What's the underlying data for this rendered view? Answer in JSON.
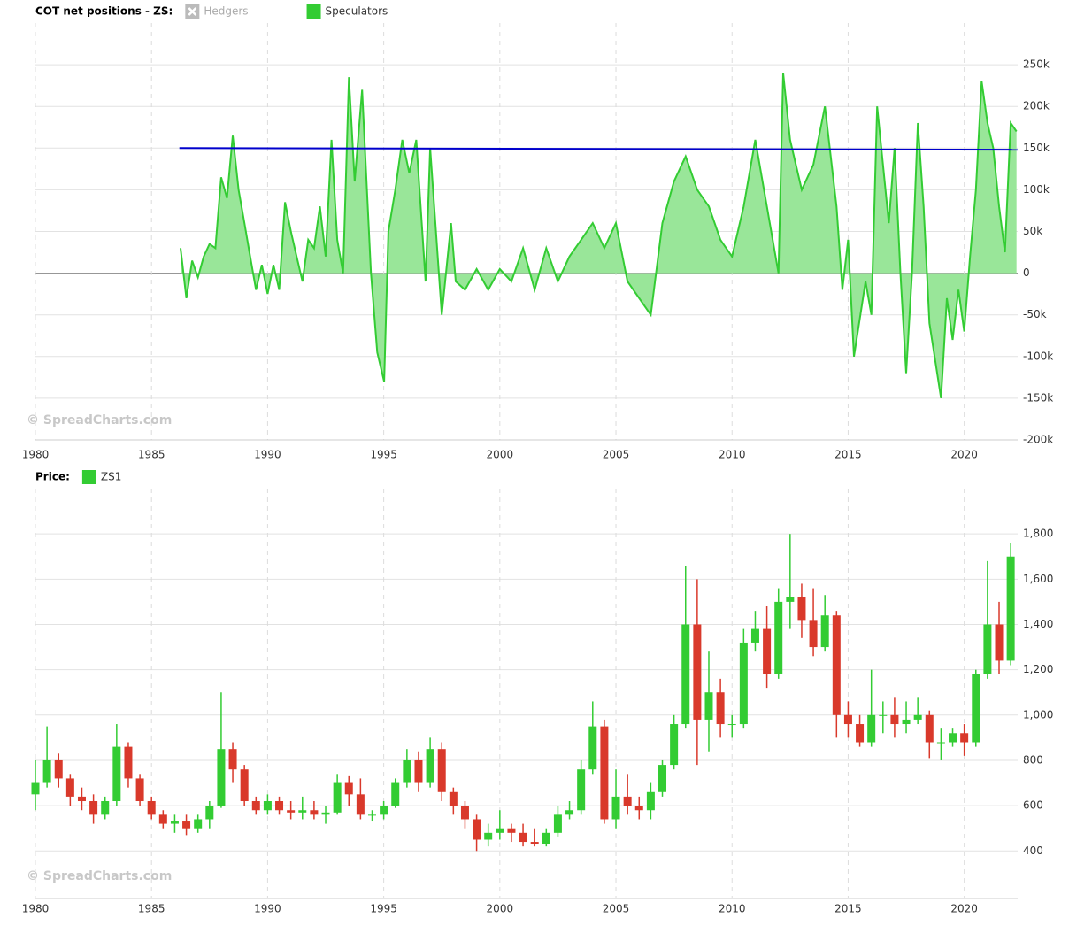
{
  "chart_data": [
    {
      "type": "area",
      "title": "COT net positions - ZS:",
      "watermark": "© SpreadCharts.com",
      "legend": [
        {
          "name": "Hedgers",
          "color": "#bbbbbb",
          "visible": false
        },
        {
          "name": "Speculators",
          "color": "#33cc33",
          "visible": true
        }
      ],
      "x": [
        1986.25,
        1986.5,
        1986.75,
        1987.0,
        1987.25,
        1987.5,
        1987.75,
        1988.0,
        1988.25,
        1988.5,
        1988.75,
        1989.0,
        1989.25,
        1989.5,
        1989.75,
        1990.0,
        1990.25,
        1990.5,
        1990.75,
        1991.0,
        1991.25,
        1991.5,
        1991.75,
        1992.0,
        1992.25,
        1992.5,
        1992.75,
        1993.0,
        1993.25,
        1993.5,
        1993.75,
        1994.07,
        1994.45,
        1994.72,
        1995.02,
        1995.2,
        1995.5,
        1995.8,
        1996.1,
        1996.4,
        1996.8,
        1997.0,
        1997.5,
        1997.9,
        1998.1,
        1998.5,
        1999.0,
        1999.5,
        2000.0,
        2000.5,
        2001.0,
        2001.5,
        2002.0,
        2002.5,
        2003.0,
        2003.5,
        2004.0,
        2004.5,
        2005.0,
        2005.5,
        2006.0,
        2006.5,
        2007.0,
        2007.5,
        2008.0,
        2008.5,
        2009.0,
        2009.5,
        2010.0,
        2010.5,
        2011.0,
        2011.5,
        2012.0,
        2012.2,
        2012.5,
        2013.0,
        2013.5,
        2014.0,
        2014.5,
        2014.75,
        2015.0,
        2015.25,
        2015.75,
        2016.0,
        2016.25,
        2016.75,
        2017.0,
        2017.25,
        2017.5,
        2017.75,
        2018.0,
        2018.25,
        2018.5,
        2019.0,
        2019.25,
        2019.5,
        2019.75,
        2020.0,
        2020.25,
        2020.5,
        2020.75,
        2021.0,
        2021.25,
        2021.5,
        2021.75,
        2022.0,
        2022.25
      ],
      "series": [
        {
          "name": "Speculators",
          "color": "#33cc33",
          "fill": "#99e699",
          "values": [
            30000,
            -30000,
            15000,
            -5000,
            20000,
            35000,
            30000,
            115000,
            90000,
            165000,
            100000,
            60000,
            20000,
            -20000,
            10000,
            -25000,
            10000,
            -20000,
            85000,
            50000,
            20000,
            -10000,
            40000,
            30000,
            80000,
            20000,
            160000,
            40000,
            0,
            235000,
            110000,
            220000,
            0,
            -95000,
            -130000,
            50000,
            100000,
            160000,
            120000,
            160000,
            -10000,
            150000,
            -50000,
            60000,
            -10000,
            -20000,
            5000,
            -20000,
            5000,
            -10000,
            30000,
            -20000,
            30000,
            -10000,
            20000,
            40000,
            60000,
            30000,
            60000,
            -10000,
            -30000,
            -50000,
            60000,
            110000,
            140000,
            100000,
            80000,
            40000,
            20000,
            80000,
            160000,
            80000,
            0,
            240000,
            160000,
            100000,
            130000,
            200000,
            80000,
            -20000,
            40000,
            -100000,
            -10000,
            -50000,
            200000,
            60000,
            150000,
            0,
            -120000,
            0,
            180000,
            80000,
            -60000,
            -150000,
            -30000,
            -80000,
            -20000,
            -70000,
            20000,
            100000,
            230000,
            180000,
            150000,
            80000,
            25000,
            180000,
            170000
          ]
        }
      ],
      "reference_line": {
        "x": [
          1986.2,
          2022.3
        ],
        "values": [
          150000,
          148000
        ],
        "color": "#0000cc"
      },
      "xlim": [
        1980,
        2022.3
      ],
      "xticks": [
        1980,
        1985,
        1990,
        1995,
        2000,
        2005,
        2010,
        2015,
        2020
      ],
      "ylim": [
        -200000,
        300000
      ],
      "yticks": [
        {
          "value": -200000,
          "label": "-200k"
        },
        {
          "value": -150000,
          "label": "-150k"
        },
        {
          "value": -100000,
          "label": "-100k"
        },
        {
          "value": -50000,
          "label": "-50k"
        },
        0,
        {
          "value": 50000,
          "label": "50k"
        },
        {
          "value": 100000,
          "label": "100k"
        },
        {
          "value": 150000,
          "label": "150k"
        },
        {
          "value": 200000,
          "label": "200k"
        },
        {
          "value": 250000,
          "label": "250k"
        }
      ],
      "grid": true
    },
    {
      "type": "candlestick",
      "title": "Price:",
      "watermark": "© SpreadCharts.com",
      "legend": [
        {
          "name": "ZS1",
          "color": "#33cc33",
          "visible": true
        }
      ],
      "up_color": "#33cc33",
      "down_color": "#d9392b",
      "x": [
        1980.0,
        1980.5,
        1981.0,
        1981.5,
        1982.0,
        1982.5,
        1983.0,
        1983.5,
        1984.0,
        1984.5,
        1985.0,
        1985.5,
        1986.0,
        1986.5,
        1987.0,
        1987.5,
        1988.0,
        1988.5,
        1989.0,
        1989.5,
        1990.0,
        1990.5,
        1991.0,
        1991.5,
        1992.0,
        1992.5,
        1993.0,
        1993.5,
        1994.0,
        1994.5,
        1995.0,
        1995.5,
        1996.0,
        1996.5,
        1997.0,
        1997.5,
        1998.0,
        1998.5,
        1999.0,
        1999.5,
        2000.0,
        2000.5,
        2001.0,
        2001.5,
        2002.0,
        2002.5,
        2003.0,
        2003.5,
        2004.0,
        2004.5,
        2005.0,
        2005.5,
        2006.0,
        2006.5,
        2007.0,
        2007.5,
        2008.0,
        2008.5,
        2009.0,
        2009.5,
        2010.0,
        2010.5,
        2011.0,
        2011.5,
        2012.0,
        2012.5,
        2013.0,
        2013.5,
        2014.0,
        2014.5,
        2015.0,
        2015.5,
        2016.0,
        2016.5,
        2017.0,
        2017.5,
        2018.0,
        2018.5,
        2019.0,
        2019.5,
        2020.0,
        2020.5,
        2021.0,
        2021.5,
        2022.0
      ],
      "open": [
        650,
        700,
        800,
        720,
        640,
        620,
        560,
        620,
        860,
        720,
        620,
        560,
        520,
        530,
        500,
        540,
        600,
        850,
        760,
        620,
        580,
        620,
        580,
        570,
        580,
        560,
        570,
        700,
        650,
        560,
        560,
        600,
        700,
        800,
        700,
        850,
        660,
        600,
        540,
        450,
        480,
        500,
        480,
        440,
        430,
        480,
        560,
        580,
        760,
        950,
        540,
        640,
        600,
        580,
        660,
        780,
        960,
        1400,
        980,
        1100,
        960,
        960,
        1320,
        1380,
        1180,
        1500,
        1520,
        1420,
        1300,
        1440,
        1000,
        960,
        880,
        1000,
        1000,
        960,
        980,
        1000,
        880,
        880,
        920,
        880,
        1180,
        1400,
        1240
      ],
      "high": [
        800,
        950,
        830,
        740,
        680,
        650,
        640,
        960,
        880,
        740,
        640,
        580,
        560,
        560,
        560,
        620,
        1100,
        880,
        780,
        640,
        650,
        640,
        620,
        640,
        620,
        600,
        740,
        730,
        720,
        580,
        620,
        720,
        850,
        840,
        900,
        880,
        680,
        620,
        560,
        520,
        580,
        520,
        520,
        500,
        500,
        600,
        620,
        800,
        1060,
        980,
        760,
        740,
        640,
        700,
        800,
        1000,
        1660,
        1600,
        1280,
        1160,
        1000,
        1380,
        1460,
        1480,
        1560,
        1800,
        1580,
        1560,
        1530,
        1460,
        1060,
        1000,
        1200,
        1060,
        1080,
        1060,
        1080,
        1020,
        940,
        940,
        960,
        1200,
        1680,
        1500,
        1760
      ],
      "low": [
        580,
        680,
        680,
        600,
        580,
        520,
        540,
        600,
        680,
        600,
        540,
        500,
        480,
        470,
        480,
        500,
        590,
        700,
        600,
        560,
        560,
        560,
        540,
        540,
        540,
        520,
        560,
        600,
        540,
        530,
        540,
        590,
        680,
        660,
        680,
        620,
        560,
        500,
        400,
        420,
        450,
        440,
        420,
        420,
        420,
        460,
        540,
        560,
        740,
        520,
        500,
        560,
        540,
        540,
        640,
        760,
        940,
        780,
        840,
        900,
        900,
        940,
        1280,
        1120,
        1160,
        1380,
        1340,
        1260,
        1280,
        900,
        900,
        860,
        860,
        920,
        900,
        920,
        960,
        810,
        800,
        860,
        820,
        860,
        1160,
        1180,
        1220
      ],
      "close": [
        700,
        800,
        720,
        640,
        620,
        560,
        620,
        860,
        720,
        620,
        560,
        520,
        530,
        500,
        540,
        600,
        850,
        760,
        620,
        580,
        620,
        580,
        570,
        580,
        560,
        570,
        700,
        650,
        560,
        560,
        600,
        700,
        800,
        700,
        850,
        660,
        600,
        540,
        450,
        480,
        500,
        480,
        440,
        430,
        480,
        560,
        580,
        760,
        950,
        540,
        640,
        600,
        580,
        660,
        780,
        960,
        1400,
        980,
        1100,
        960,
        960,
        1320,
        1380,
        1180,
        1500,
        1520,
        1420,
        1300,
        1440,
        1000,
        960,
        880,
        1000,
        1000,
        960,
        980,
        1000,
        880,
        880,
        920,
        880,
        1180,
        1400,
        1240,
        1700
      ],
      "xlim": [
        1980,
        2022.3
      ],
      "xticks": [
        1980,
        1985,
        1990,
        1995,
        2000,
        2005,
        2010,
        2015,
        2020
      ],
      "ylim": [
        190,
        2000
      ],
      "yticks": [
        400,
        600,
        800,
        {
          "value": 1000,
          "label": "1,000"
        },
        {
          "value": 1200,
          "label": "1,200"
        },
        {
          "value": 1400,
          "label": "1,400"
        },
        {
          "value": 1600,
          "label": "1,600"
        },
        {
          "value": 1800,
          "label": "1,800"
        }
      ],
      "grid": true
    }
  ]
}
